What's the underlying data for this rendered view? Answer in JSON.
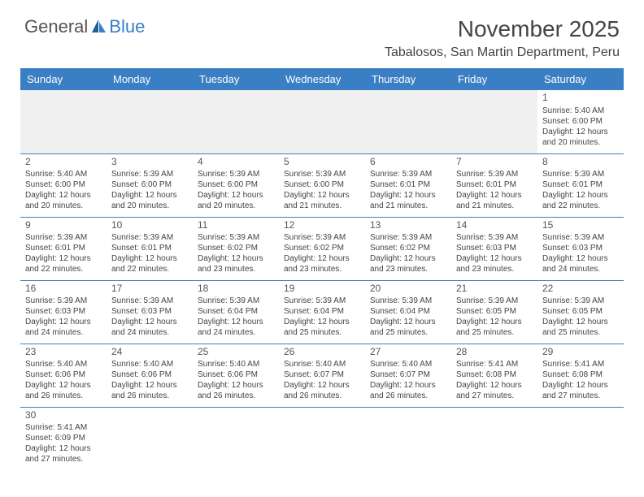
{
  "logo": {
    "text1": "General",
    "text2": "Blue"
  },
  "title": "November 2025",
  "location": "Tabalosos, San Martin Department, Peru",
  "colors": {
    "header_bg": "#3a7fc4",
    "header_text": "#ffffff",
    "border": "#3a7fc4",
    "text": "#444444",
    "blank_bg": "#f0f0f0"
  },
  "day_headers": [
    "Sunday",
    "Monday",
    "Tuesday",
    "Wednesday",
    "Thursday",
    "Friday",
    "Saturday"
  ],
  "weeks": [
    [
      null,
      null,
      null,
      null,
      null,
      null,
      {
        "n": "1",
        "sr": "5:40 AM",
        "ss": "6:00 PM",
        "dl": "12 hours and 20 minutes."
      }
    ],
    [
      {
        "n": "2",
        "sr": "5:40 AM",
        "ss": "6:00 PM",
        "dl": "12 hours and 20 minutes."
      },
      {
        "n": "3",
        "sr": "5:39 AM",
        "ss": "6:00 PM",
        "dl": "12 hours and 20 minutes."
      },
      {
        "n": "4",
        "sr": "5:39 AM",
        "ss": "6:00 PM",
        "dl": "12 hours and 20 minutes."
      },
      {
        "n": "5",
        "sr": "5:39 AM",
        "ss": "6:00 PM",
        "dl": "12 hours and 21 minutes."
      },
      {
        "n": "6",
        "sr": "5:39 AM",
        "ss": "6:01 PM",
        "dl": "12 hours and 21 minutes."
      },
      {
        "n": "7",
        "sr": "5:39 AM",
        "ss": "6:01 PM",
        "dl": "12 hours and 21 minutes."
      },
      {
        "n": "8",
        "sr": "5:39 AM",
        "ss": "6:01 PM",
        "dl": "12 hours and 22 minutes."
      }
    ],
    [
      {
        "n": "9",
        "sr": "5:39 AM",
        "ss": "6:01 PM",
        "dl": "12 hours and 22 minutes."
      },
      {
        "n": "10",
        "sr": "5:39 AM",
        "ss": "6:01 PM",
        "dl": "12 hours and 22 minutes."
      },
      {
        "n": "11",
        "sr": "5:39 AM",
        "ss": "6:02 PM",
        "dl": "12 hours and 23 minutes."
      },
      {
        "n": "12",
        "sr": "5:39 AM",
        "ss": "6:02 PM",
        "dl": "12 hours and 23 minutes."
      },
      {
        "n": "13",
        "sr": "5:39 AM",
        "ss": "6:02 PM",
        "dl": "12 hours and 23 minutes."
      },
      {
        "n": "14",
        "sr": "5:39 AM",
        "ss": "6:03 PM",
        "dl": "12 hours and 23 minutes."
      },
      {
        "n": "15",
        "sr": "5:39 AM",
        "ss": "6:03 PM",
        "dl": "12 hours and 24 minutes."
      }
    ],
    [
      {
        "n": "16",
        "sr": "5:39 AM",
        "ss": "6:03 PM",
        "dl": "12 hours and 24 minutes."
      },
      {
        "n": "17",
        "sr": "5:39 AM",
        "ss": "6:03 PM",
        "dl": "12 hours and 24 minutes."
      },
      {
        "n": "18",
        "sr": "5:39 AM",
        "ss": "6:04 PM",
        "dl": "12 hours and 24 minutes."
      },
      {
        "n": "19",
        "sr": "5:39 AM",
        "ss": "6:04 PM",
        "dl": "12 hours and 25 minutes."
      },
      {
        "n": "20",
        "sr": "5:39 AM",
        "ss": "6:04 PM",
        "dl": "12 hours and 25 minutes."
      },
      {
        "n": "21",
        "sr": "5:39 AM",
        "ss": "6:05 PM",
        "dl": "12 hours and 25 minutes."
      },
      {
        "n": "22",
        "sr": "5:39 AM",
        "ss": "6:05 PM",
        "dl": "12 hours and 25 minutes."
      }
    ],
    [
      {
        "n": "23",
        "sr": "5:40 AM",
        "ss": "6:06 PM",
        "dl": "12 hours and 26 minutes."
      },
      {
        "n": "24",
        "sr": "5:40 AM",
        "ss": "6:06 PM",
        "dl": "12 hours and 26 minutes."
      },
      {
        "n": "25",
        "sr": "5:40 AM",
        "ss": "6:06 PM",
        "dl": "12 hours and 26 minutes."
      },
      {
        "n": "26",
        "sr": "5:40 AM",
        "ss": "6:07 PM",
        "dl": "12 hours and 26 minutes."
      },
      {
        "n": "27",
        "sr": "5:40 AM",
        "ss": "6:07 PM",
        "dl": "12 hours and 26 minutes."
      },
      {
        "n": "28",
        "sr": "5:41 AM",
        "ss": "6:08 PM",
        "dl": "12 hours and 27 minutes."
      },
      {
        "n": "29",
        "sr": "5:41 AM",
        "ss": "6:08 PM",
        "dl": "12 hours and 27 minutes."
      }
    ],
    [
      {
        "n": "30",
        "sr": "5:41 AM",
        "ss": "6:09 PM",
        "dl": "12 hours and 27 minutes."
      },
      null,
      null,
      null,
      null,
      null,
      null
    ]
  ],
  "labels": {
    "sunrise": "Sunrise:",
    "sunset": "Sunset:",
    "daylight": "Daylight:"
  }
}
